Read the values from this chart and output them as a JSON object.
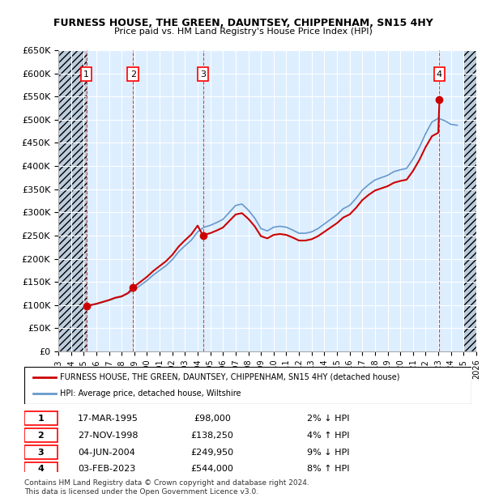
{
  "title": "FURNESS HOUSE, THE GREEN, DAUNTSEY, CHIPPENHAM, SN15 4HY",
  "subtitle": "Price paid vs. HM Land Registry's House Price Index (HPI)",
  "ylabel": "",
  "ylim": [
    0,
    650000
  ],
  "yticks": [
    0,
    50000,
    100000,
    150000,
    200000,
    250000,
    300000,
    350000,
    400000,
    450000,
    500000,
    550000,
    600000,
    650000
  ],
  "xlim_min": 1993.0,
  "xlim_max": 2026.0,
  "xticks": [
    1993,
    1994,
    1995,
    1996,
    1997,
    1998,
    1999,
    2000,
    2001,
    2002,
    2003,
    2004,
    2005,
    2006,
    2007,
    2008,
    2009,
    2010,
    2011,
    2012,
    2013,
    2014,
    2015,
    2016,
    2017,
    2018,
    2019,
    2020,
    2021,
    2022,
    2023,
    2024,
    2025,
    2026
  ],
  "sales": [
    {
      "num": 1,
      "date": "17-MAR-1995",
      "year": 1995.21,
      "price": 98000,
      "hpi_pct": "2% ↓ HPI"
    },
    {
      "num": 2,
      "date": "27-NOV-1998",
      "year": 1998.9,
      "price": 138250,
      "hpi_pct": "4% ↑ HPI"
    },
    {
      "num": 3,
      "date": "04-JUN-2004",
      "year": 2004.42,
      "price": 249950,
      "hpi_pct": "9% ↓ HPI"
    },
    {
      "num": 4,
      "date": "03-FEB-2023",
      "year": 2023.09,
      "price": 544000,
      "hpi_pct": "8% ↑ HPI"
    }
  ],
  "property_line_color": "#cc0000",
  "hpi_line_color": "#6699cc",
  "hpi_data_x": [
    1995,
    1995.5,
    1996,
    1996.5,
    1997,
    1997.5,
    1998,
    1998.5,
    1999,
    1999.5,
    2000,
    2000.5,
    2001,
    2001.5,
    2002,
    2002.5,
    2003,
    2003.5,
    2004,
    2004.5,
    2005,
    2005.5,
    2006,
    2006.5,
    2007,
    2007.5,
    2008,
    2008.5,
    2009,
    2009.5,
    2010,
    2010.5,
    2011,
    2011.5,
    2012,
    2012.5,
    2013,
    2013.5,
    2014,
    2014.5,
    2015,
    2015.5,
    2016,
    2016.5,
    2017,
    2017.5,
    2018,
    2018.5,
    2019,
    2019.5,
    2020,
    2020.5,
    2021,
    2021.5,
    2022,
    2022.5,
    2023,
    2023.5,
    2024,
    2024.5
  ],
  "hpi_data_y": [
    96000,
    99000,
    102000,
    106000,
    110000,
    115000,
    118000,
    125000,
    133000,
    143000,
    153000,
    165000,
    175000,
    185000,
    198000,
    215000,
    228000,
    240000,
    258000,
    268000,
    272000,
    278000,
    285000,
    300000,
    315000,
    318000,
    305000,
    288000,
    265000,
    260000,
    268000,
    270000,
    268000,
    262000,
    255000,
    255000,
    258000,
    265000,
    275000,
    285000,
    295000,
    308000,
    315000,
    330000,
    348000,
    360000,
    370000,
    375000,
    380000,
    388000,
    392000,
    395000,
    415000,
    440000,
    470000,
    495000,
    503000,
    498000,
    490000,
    488000
  ],
  "legend_property": "FURNESS HOUSE, THE GREEN, DAUNTSEY, CHIPPENHAM, SN15 4HY (detached house)",
  "legend_hpi": "HPI: Average price, detached house, Wiltshire",
  "footnote": "Contains HM Land Registry data © Crown copyright and database right 2024.\nThis data is licensed under the Open Government Licence v3.0.",
  "bg_color": "#ddeeff",
  "hatch_color": "#bbccdd",
  "grid_color": "#ffffff"
}
